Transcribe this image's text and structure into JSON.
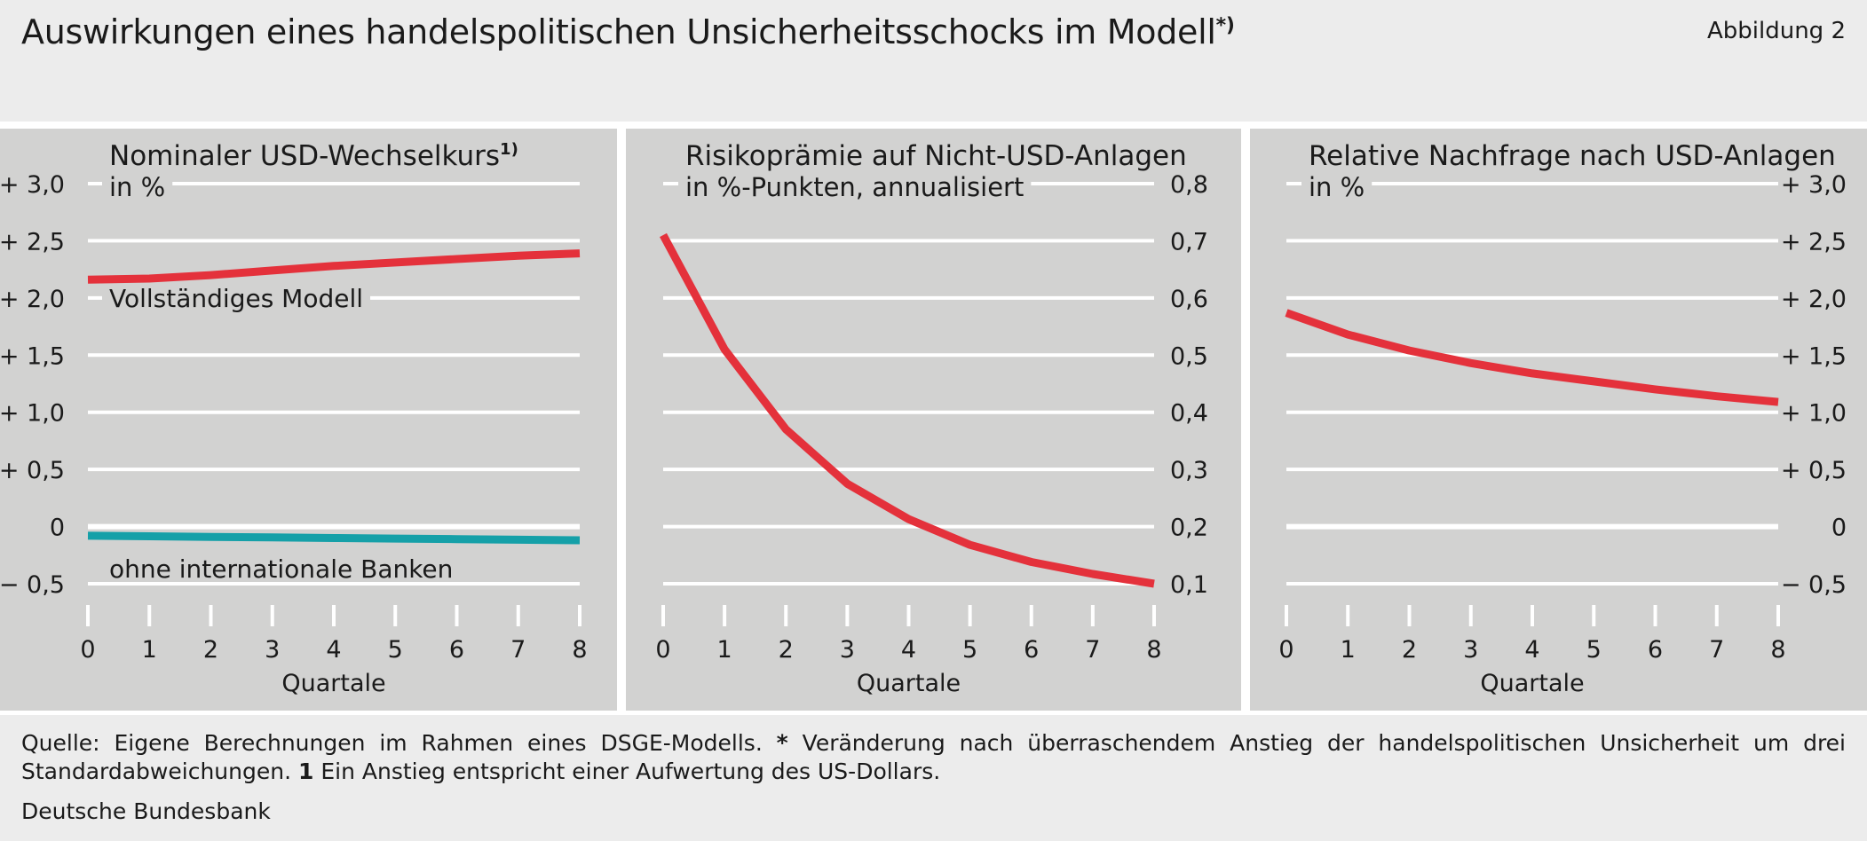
{
  "header": {
    "title": "Auswirkungen eines handelspolitischen Unsicherheitsschocks im Modell",
    "title_footnote_mark": "*)",
    "figure_label": "Abbildung 2"
  },
  "footer": {
    "source_text": "Quelle: Eigene Berechnungen im Rahmen eines DSGE-Modells.",
    "note_star_mark": "*",
    "note_star_text": "Veränderung nach überraschendem Anstieg der handelspolitischen Unsicherheit um drei Standardabweichungen.",
    "note_1_mark": "1",
    "note_1_text": "Ein Anstieg entspricht einer Aufwertung des US-Dollars.",
    "organization": "Deutsche Bundesbank"
  },
  "colors": {
    "background": "#ececec",
    "panel": "#d2d2d1",
    "grid": "#ffffff",
    "red": "#e4313b",
    "teal": "#15a0a8"
  },
  "chart_data": [
    {
      "type": "line",
      "title": "Nominaler USD-Wechselkurs",
      "title_footnote_mark": "1)",
      "subtitle": "in %",
      "xlabel": "Quartale",
      "x": [
        0,
        1,
        2,
        3,
        4,
        5,
        6,
        7,
        8
      ],
      "xticks": [
        "0",
        "1",
        "2",
        "3",
        "4",
        "5",
        "6",
        "7",
        "8"
      ],
      "ylim": [
        -0.5,
        3.0
      ],
      "yticks": [
        -0.5,
        0,
        0.5,
        1.0,
        1.5,
        2.0,
        2.5,
        3.0
      ],
      "ytick_labels": [
        "− 0,5",
        "0",
        "+ 0,5",
        "+ 1,0",
        "+ 1,5",
        "+ 2,0",
        "+ 2,5",
        "+ 3,0"
      ],
      "yaxis_side": "left",
      "grid": true,
      "series": [
        {
          "name": "Vollständiges Modell",
          "color": "#e4313b",
          "values": [
            2.16,
            2.17,
            2.2,
            2.24,
            2.28,
            2.31,
            2.34,
            2.37,
            2.39
          ]
        },
        {
          "name": "ohne internationale Banken",
          "color": "#15a0a8",
          "values": [
            -0.08,
            -0.085,
            -0.09,
            -0.095,
            -0.1,
            -0.105,
            -0.11,
            -0.115,
            -0.12
          ]
        }
      ]
    },
    {
      "type": "line",
      "title": "Risikoprämie auf Nicht-USD-Anlagen",
      "subtitle": "in %-Punkten, annualisiert",
      "xlabel": "Quartale",
      "x": [
        0,
        1,
        2,
        3,
        4,
        5,
        6,
        7,
        8
      ],
      "xticks": [
        "0",
        "1",
        "2",
        "3",
        "4",
        "5",
        "6",
        "7",
        "8"
      ],
      "ylim": [
        0.1,
        0.8
      ],
      "yticks": [
        0.1,
        0.2,
        0.3,
        0.4,
        0.5,
        0.6,
        0.7,
        0.8
      ],
      "ytick_labels": [
        "0,1",
        "0,2",
        "0,3",
        "0,4",
        "0,5",
        "0,6",
        "0,7",
        "0,8"
      ],
      "yaxis_side": "right",
      "grid": true,
      "series": [
        {
          "color": "#e4313b",
          "values": [
            0.71,
            0.51,
            0.37,
            0.275,
            0.213,
            0.168,
            0.138,
            0.117,
            0.1
          ]
        }
      ]
    },
    {
      "type": "line",
      "title": "Relative Nachfrage nach USD-Anlagen",
      "subtitle": "in %",
      "xlabel": "Quartale",
      "x": [
        0,
        1,
        2,
        3,
        4,
        5,
        6,
        7,
        8
      ],
      "xticks": [
        "0",
        "1",
        "2",
        "3",
        "4",
        "5",
        "6",
        "7",
        "8"
      ],
      "ylim": [
        -0.5,
        3.0
      ],
      "yticks": [
        -0.5,
        0,
        0.5,
        1.0,
        1.5,
        2.0,
        2.5,
        3.0
      ],
      "ytick_labels": [
        "− 0,5",
        "0",
        "+ 0,5",
        "+ 1,0",
        "+ 1,5",
        "+ 2,0",
        "+ 2,5",
        "+ 3,0"
      ],
      "yaxis_side": "right",
      "grid": true,
      "series": [
        {
          "color": "#e4313b",
          "values": [
            1.87,
            1.68,
            1.54,
            1.43,
            1.34,
            1.27,
            1.2,
            1.14,
            1.09
          ]
        }
      ]
    }
  ]
}
